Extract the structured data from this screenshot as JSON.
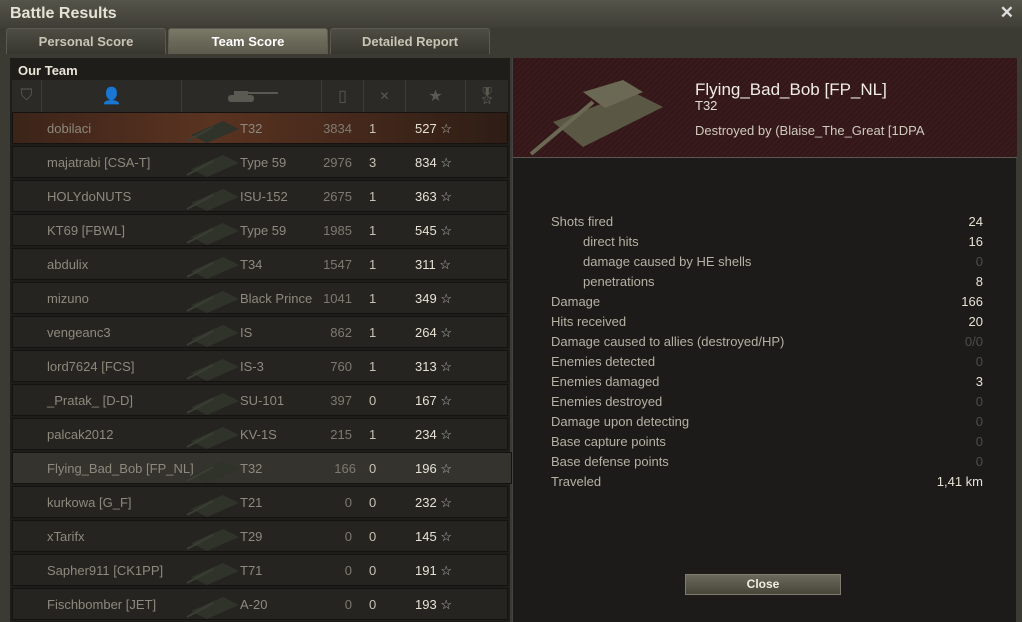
{
  "window": {
    "title": "Battle Results"
  },
  "tabs": [
    {
      "label": "Personal Score"
    },
    {
      "label": "Team Score",
      "active": true
    },
    {
      "label": "Detailed Report"
    }
  ],
  "team": {
    "label": "Our Team",
    "header_icons": [
      "squad-icon",
      "player-icon",
      "tank-icon",
      "damage-icon",
      "kills-icon",
      "experience-star-icon",
      "medal-icon"
    ],
    "rows": [
      {
        "player": "dobilaci",
        "tank": "T32",
        "damage": "3834",
        "kills": "1",
        "xp": "527"
      },
      {
        "player": "majatrabi [CSA-T]",
        "tank": "Type 59",
        "damage": "2976",
        "kills": "3",
        "xp": "834"
      },
      {
        "player": "HOLYdoNUTS",
        "tank": "ISU-152",
        "damage": "2675",
        "kills": "1",
        "xp": "363"
      },
      {
        "player": "KT69 [FBWL]",
        "tank": "Type 59",
        "damage": "1985",
        "kills": "1",
        "xp": "545"
      },
      {
        "player": "abdulix",
        "tank": "T34",
        "damage": "1547",
        "kills": "1",
        "xp": "311"
      },
      {
        "player": "mizuno",
        "tank": "Black Prince",
        "damage": "1041",
        "kills": "1",
        "xp": "349"
      },
      {
        "player": "vengeanc3",
        "tank": "IS",
        "damage": "862",
        "kills": "1",
        "xp": "264"
      },
      {
        "player": "lord7624 [FCS]",
        "tank": "IS-3",
        "damage": "760",
        "kills": "1",
        "xp": "313"
      },
      {
        "player": "_Pratak_ [D-D]",
        "tank": "SU-101",
        "damage": "397",
        "kills": "0",
        "xp": "167"
      },
      {
        "player": "palcak2012",
        "tank": "KV-1S",
        "damage": "215",
        "kills": "1",
        "xp": "234"
      },
      {
        "player": "Flying_Bad_Bob [FP_NL]",
        "tank": "T32",
        "damage": "166",
        "kills": "0",
        "xp": "196"
      },
      {
        "player": "kurkowa [G_F]",
        "tank": "T21",
        "damage": "0",
        "kills": "0",
        "xp": "232"
      },
      {
        "player": "xTarifx",
        "tank": "T29",
        "damage": "0",
        "kills": "0",
        "xp": "145"
      },
      {
        "player": "Sapher911 [CK1PP]",
        "tank": "T71",
        "damage": "0",
        "kills": "0",
        "xp": "191"
      },
      {
        "player": "Fischbomber [JET]",
        "tank": "A-20",
        "damage": "0",
        "kills": "0",
        "xp": "193"
      }
    ]
  },
  "detail": {
    "player": "Flying_Bad_Bob [FP_NL]",
    "tank": "T32",
    "killer": "Destroyed by (Blaise_The_Great [1DPA",
    "stats": [
      {
        "label": "Shots fired",
        "value": "24"
      },
      {
        "label": "direct hits",
        "value": "16",
        "indent": true
      },
      {
        "label": "damage caused by HE shells",
        "value": "0",
        "indent": true
      },
      {
        "label": "penetrations",
        "value": "8",
        "indent": true
      },
      {
        "label": "Damage",
        "value": "166"
      },
      {
        "label": "Hits received",
        "value": "20"
      },
      {
        "label": "Damage caused to allies (destroyed/HP)",
        "value": "0/0"
      },
      {
        "label": "Enemies detected",
        "value": "0"
      },
      {
        "label": "Enemies damaged",
        "value": "3"
      },
      {
        "label": "Enemies destroyed",
        "value": "0"
      },
      {
        "label": "Damage upon detecting",
        "value": "0"
      },
      {
        "label": "Base capture points",
        "value": "0"
      },
      {
        "label": "Base defense points",
        "value": "0"
      },
      {
        "label": "Traveled",
        "value": "1,41 km"
      }
    ],
    "close_label": "Close"
  },
  "colors": {
    "own_row": "#5a3321",
    "selected_row": "#34332e",
    "banner": "#3a1a1c"
  }
}
